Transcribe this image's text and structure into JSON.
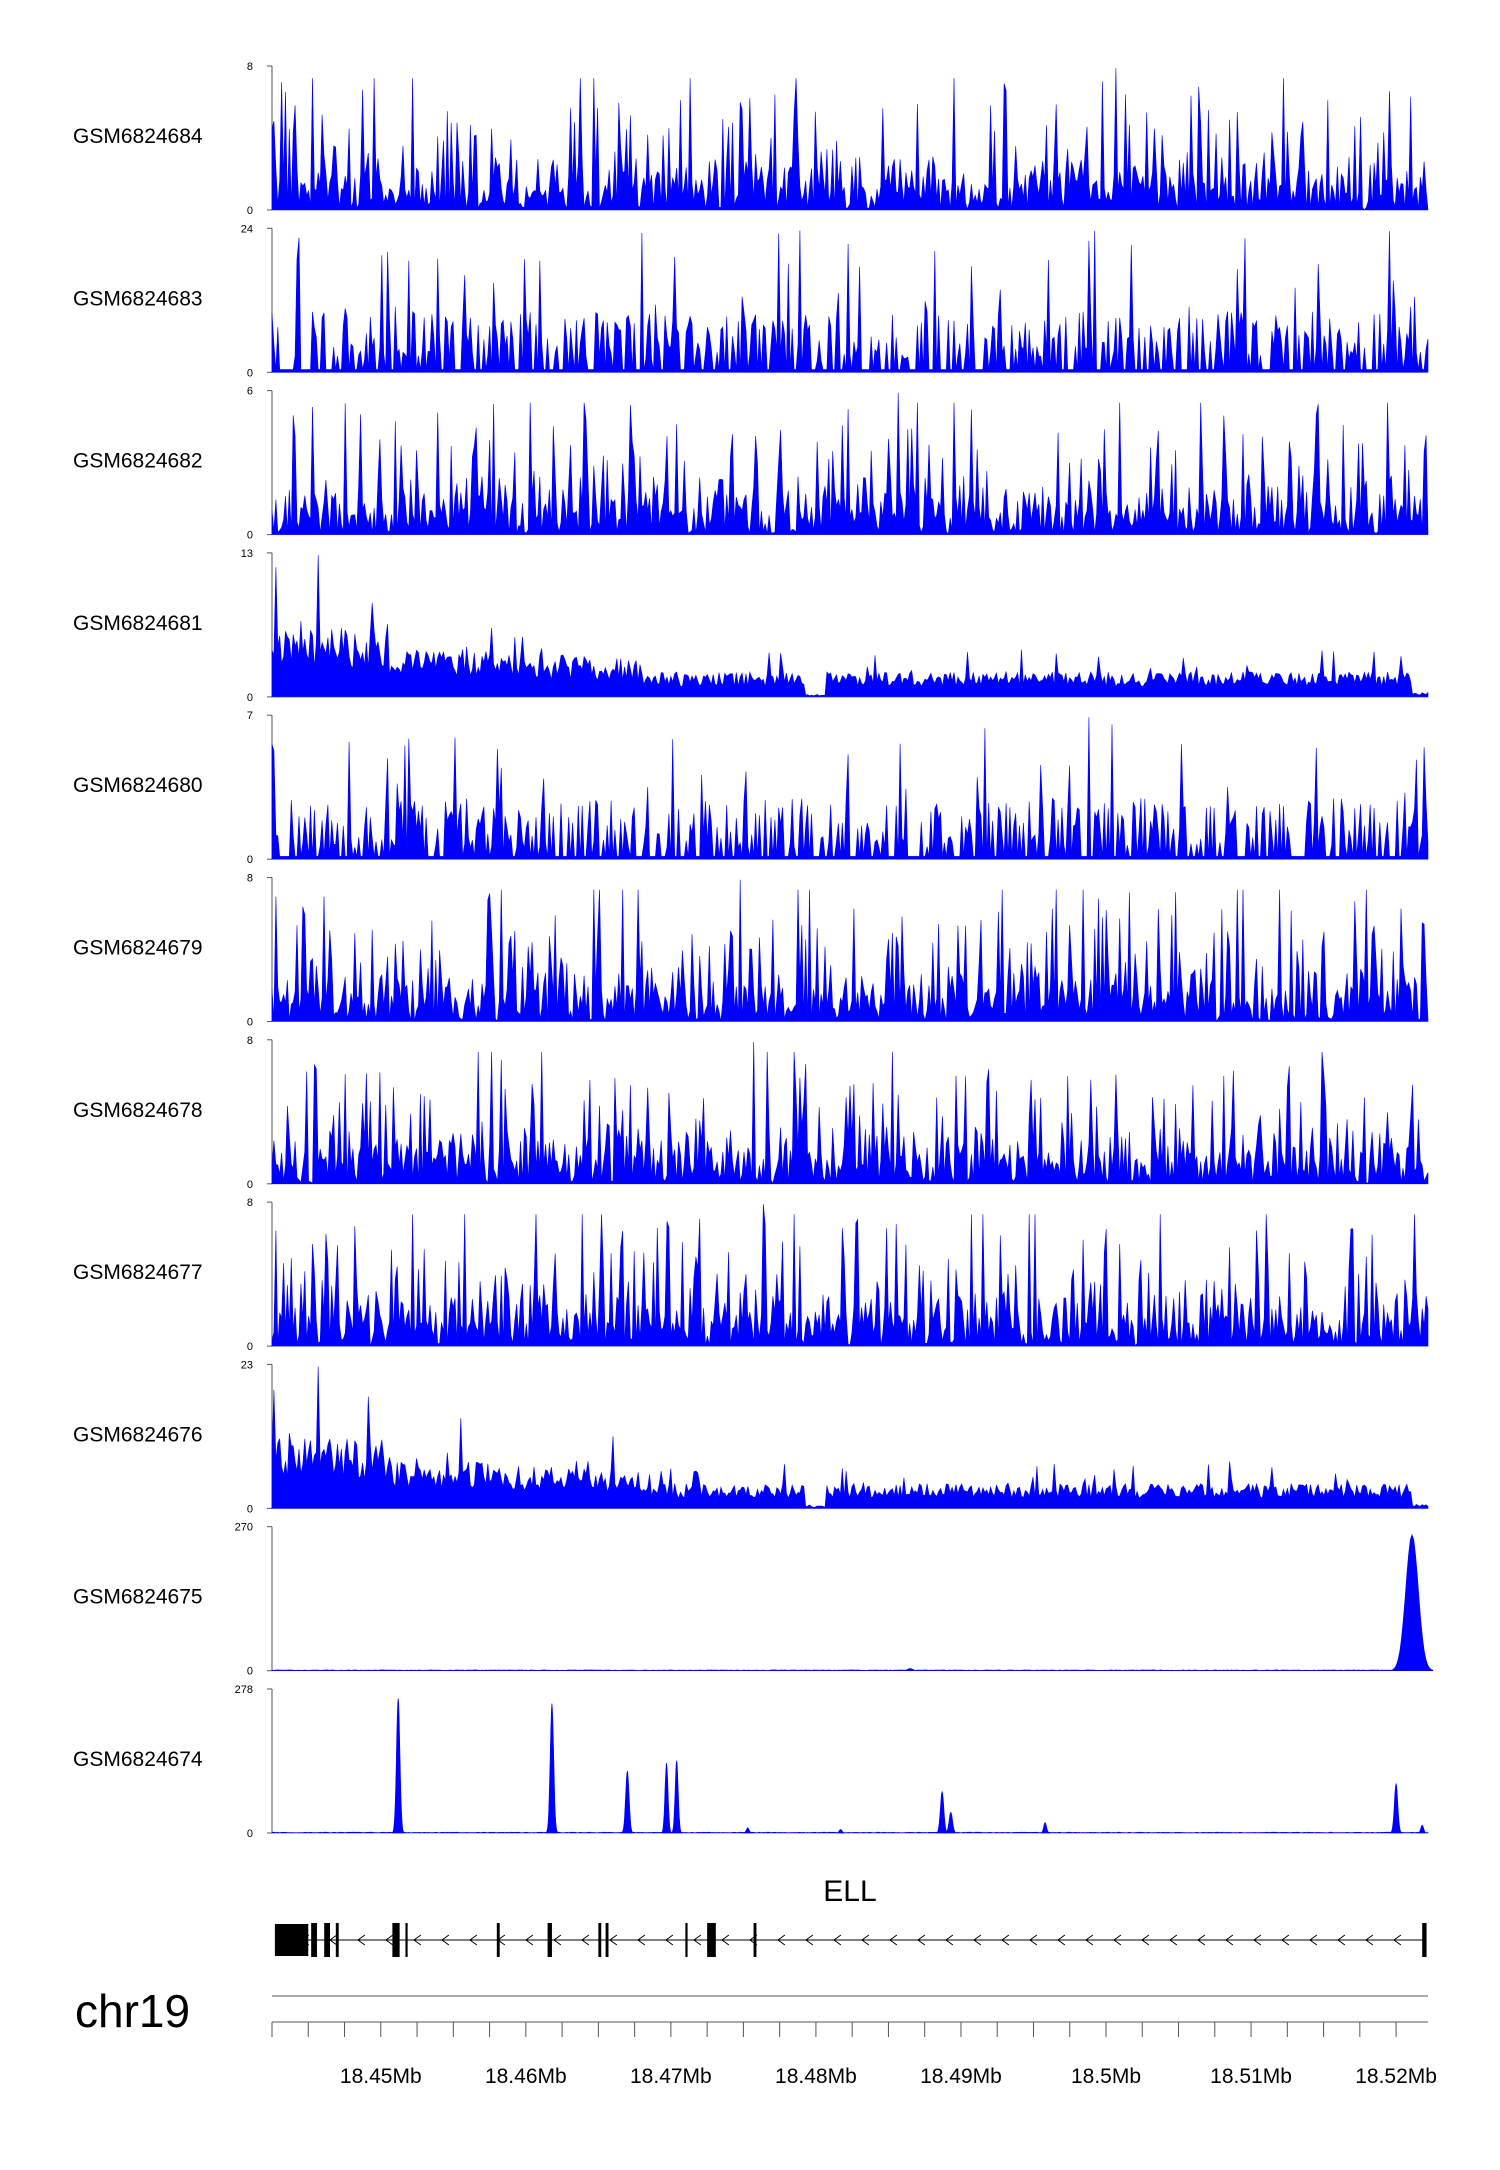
{
  "chart_data": {
    "type": "area",
    "tracks": [
      {
        "name": "GSM6824684",
        "ymax": "8",
        "ymin": "0",
        "pattern": "noisy",
        "maxVal": 8,
        "peaks": []
      },
      {
        "name": "GSM6824683",
        "ymax": "24",
        "ymin": "0",
        "pattern": "sparse",
        "maxVal": 24,
        "peaks": []
      },
      {
        "name": "GSM6824682",
        "ymax": "6",
        "ymin": "0",
        "pattern": "noisy",
        "maxVal": 6,
        "peaks": []
      },
      {
        "name": "GSM6824681",
        "ymax": "13",
        "ymin": "0",
        "pattern": "decay",
        "maxVal": 13,
        "peaks": []
      },
      {
        "name": "GSM6824680",
        "ymax": "7",
        "ymin": "0",
        "pattern": "sparse",
        "maxVal": 7,
        "peaks": []
      },
      {
        "name": "GSM6824679",
        "ymax": "8",
        "ymin": "0",
        "pattern": "noisy",
        "maxVal": 8,
        "peaks": []
      },
      {
        "name": "GSM6824678",
        "ymax": "8",
        "ymin": "0",
        "pattern": "noisy",
        "maxVal": 8,
        "peaks": []
      },
      {
        "name": "GSM6824677",
        "ymax": "8",
        "ymin": "0",
        "pattern": "noisy",
        "maxVal": 8,
        "peaks": []
      },
      {
        "name": "GSM6824676",
        "ymax": "23",
        "ymin": "0",
        "pattern": "decay",
        "maxVal": 23,
        "peaks": []
      },
      {
        "name": "GSM6824675",
        "ymax": "270",
        "ymin": "0",
        "pattern": "peaks",
        "maxVal": 270,
        "peaks": [
          {
            "pos": 18.5211,
            "height": 255,
            "width": 0.0009
          },
          {
            "pos": 18.4865,
            "height": 4,
            "width": 0.0004
          }
        ]
      },
      {
        "name": "GSM6824674",
        "ymax": "278",
        "ymin": "0",
        "pattern": "peaks",
        "maxVal": 278,
        "peaks": [
          {
            "pos": 18.4512,
            "height": 260,
            "width": 0.00025
          },
          {
            "pos": 18.4618,
            "height": 250,
            "width": 0.00025
          },
          {
            "pos": 18.467,
            "height": 120,
            "width": 0.00025
          },
          {
            "pos": 18.4697,
            "height": 135,
            "width": 0.00022
          },
          {
            "pos": 18.4704,
            "height": 140,
            "width": 0.00022
          },
          {
            "pos": 18.4887,
            "height": 80,
            "width": 0.00025
          },
          {
            "pos": 18.4893,
            "height": 40,
            "width": 0.00025
          },
          {
            "pos": 18.4958,
            "height": 20,
            "width": 0.0002
          },
          {
            "pos": 18.52,
            "height": 95,
            "width": 0.00025
          },
          {
            "pos": 18.5218,
            "height": 15,
            "width": 0.0002
          },
          {
            "pos": 18.4753,
            "height": 10,
            "width": 0.0002
          },
          {
            "pos": 18.4817,
            "height": 7,
            "width": 0.0002
          }
        ]
      }
    ],
    "gene": {
      "name": "ELL",
      "start": 18.4427,
      "end": 18.5221,
      "exons": [
        {
          "start": 18.4427,
          "end": 18.445
        },
        {
          "start": 18.4452,
          "end": 18.4456
        },
        {
          "start": 18.4461,
          "end": 18.4465
        },
        {
          "start": 18.4469,
          "end": 18.4471
        },
        {
          "start": 18.4508,
          "end": 18.4513
        },
        {
          "start": 18.4517,
          "end": 18.4518
        },
        {
          "start": 18.458,
          "end": 18.4582
        },
        {
          "start": 18.4615,
          "end": 18.4618
        },
        {
          "start": 18.465,
          "end": 18.4652
        },
        {
          "start": 18.4655,
          "end": 18.4657
        },
        {
          "start": 18.471,
          "end": 18.4711
        },
        {
          "start": 18.4725,
          "end": 18.4731
        },
        {
          "start": 18.4757,
          "end": 18.4759
        },
        {
          "start": 18.5218,
          "end": 18.5221
        }
      ]
    },
    "axis": {
      "chromosome": "chr19",
      "xlim": [
        18.4425,
        18.5222
      ],
      "ticks": [
        {
          "value": 18.45,
          "label": "18.45Mb"
        },
        {
          "value": 18.46,
          "label": "18.46Mb"
        },
        {
          "value": 18.47,
          "label": "18.47Mb"
        },
        {
          "value": 18.48,
          "label": "18.48Mb"
        },
        {
          "value": 18.49,
          "label": "18.49Mb"
        },
        {
          "value": 18.5,
          "label": "18.5Mb"
        },
        {
          "value": 18.51,
          "label": "18.51Mb"
        },
        {
          "value": 18.52,
          "label": "18.52Mb"
        }
      ]
    },
    "colors": {
      "signal": "#0000ff",
      "gene": "#000000",
      "axis": "#555555"
    }
  }
}
